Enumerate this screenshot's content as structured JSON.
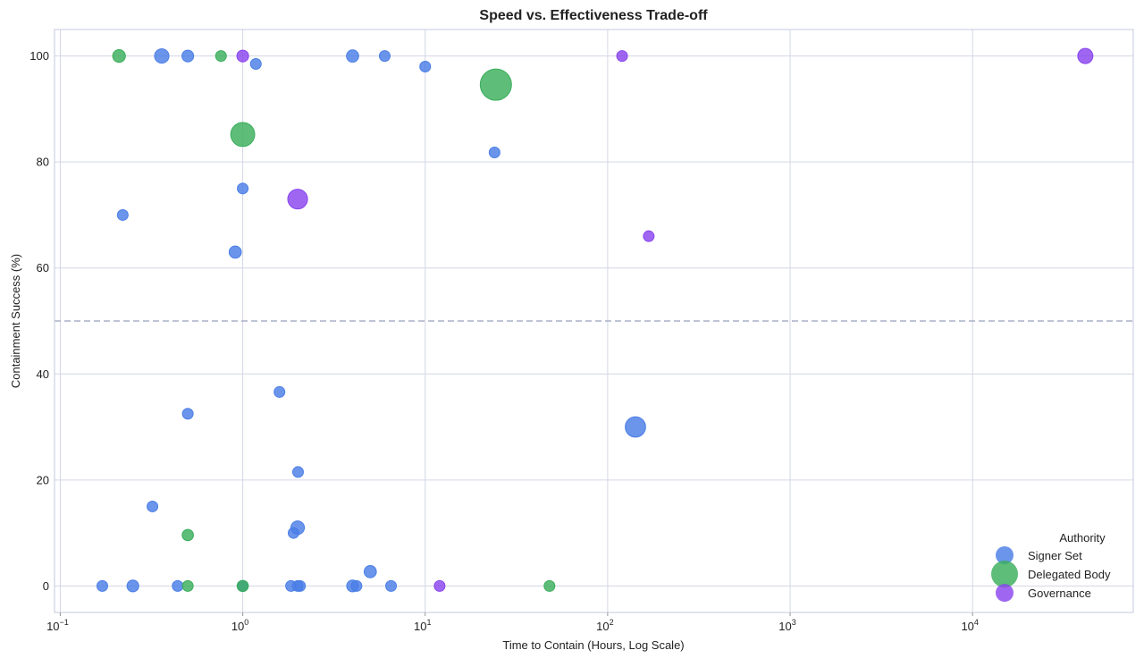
{
  "chart_data": {
    "type": "scatter",
    "title": "Speed vs. Effectiveness Trade-off",
    "xlabel": "Time to Contain (Hours, Log Scale)",
    "ylabel": "Containment Success (%)",
    "xscale": "log",
    "xlim": [
      0.093,
      76000
    ],
    "ylim": [
      -5,
      105
    ],
    "x_ticks": [
      {
        "base": "10",
        "exp": "−1",
        "value": 0.1
      },
      {
        "base": "10",
        "exp": "0",
        "value": 1
      },
      {
        "base": "10",
        "exp": "1",
        "value": 10
      },
      {
        "base": "10",
        "exp": "2",
        "value": 100
      },
      {
        "base": "10",
        "exp": "3",
        "value": 1000
      },
      {
        "base": "10",
        "exp": "4",
        "value": 10000
      }
    ],
    "y_ticks": [
      "0",
      "20",
      "40",
      "60",
      "80",
      "100"
    ],
    "grid": true,
    "reference_line": {
      "y": 50,
      "style": "dashed"
    },
    "legend": {
      "title": "Authority",
      "placement": "bottom-right"
    },
    "colors": {
      "Signer Set": "#4a7ee6",
      "Delegated Body": "#3aae5c",
      "Governance": "#8a45ee"
    },
    "series": [
      {
        "name": "Signer Set",
        "points": [
          {
            "x": 0.36,
            "y": 100,
            "size": 1.8
          },
          {
            "x": 0.5,
            "y": 100,
            "size": 1.2
          },
          {
            "x": 1.18,
            "y": 98.5,
            "size": 1
          },
          {
            "x": 4.0,
            "y": 100,
            "size": 1.3
          },
          {
            "x": 6.0,
            "y": 100,
            "size": 1
          },
          {
            "x": 10,
            "y": 98,
            "size": 1
          },
          {
            "x": 24,
            "y": 81.8,
            "size": 1
          },
          {
            "x": 1.0,
            "y": 75,
            "size": 1
          },
          {
            "x": 0.22,
            "y": 70,
            "size": 1
          },
          {
            "x": 0.91,
            "y": 63,
            "size": 1.3
          },
          {
            "x": 1.59,
            "y": 36.6,
            "size": 1
          },
          {
            "x": 0.5,
            "y": 32.5,
            "size": 1
          },
          {
            "x": 142,
            "y": 30,
            "size": 3.6
          },
          {
            "x": 2.01,
            "y": 21.5,
            "size": 1
          },
          {
            "x": 0.32,
            "y": 15,
            "size": 1
          },
          {
            "x": 2.0,
            "y": 11,
            "size": 1.6
          },
          {
            "x": 1.9,
            "y": 10,
            "size": 1
          },
          {
            "x": 5.0,
            "y": 2.7,
            "size": 1.3
          },
          {
            "x": 0.17,
            "y": 0,
            "size": 1
          },
          {
            "x": 0.25,
            "y": 0,
            "size": 1.2
          },
          {
            "x": 0.44,
            "y": 0,
            "size": 1
          },
          {
            "x": 1.0,
            "y": 0,
            "size": 1
          },
          {
            "x": 1.84,
            "y": 0,
            "size": 1
          },
          {
            "x": 2.0,
            "y": 0,
            "size": 1
          },
          {
            "x": 2.06,
            "y": 0,
            "size": 1
          },
          {
            "x": 4.0,
            "y": 0,
            "size": 1.2
          },
          {
            "x": 4.2,
            "y": 0,
            "size": 1
          },
          {
            "x": 6.5,
            "y": 0,
            "size": 1
          }
        ]
      },
      {
        "name": "Delegated Body",
        "points": [
          {
            "x": 0.21,
            "y": 100,
            "size": 1.4
          },
          {
            "x": 0.76,
            "y": 100,
            "size": 1
          },
          {
            "x": 24.4,
            "y": 94.6,
            "size": 8.5
          },
          {
            "x": 1.0,
            "y": 85.2,
            "size": 5
          },
          {
            "x": 0.5,
            "y": 9.6,
            "size": 1.1
          },
          {
            "x": 0.5,
            "y": 0,
            "size": 1
          },
          {
            "x": 1.0,
            "y": 0,
            "size": 1.1
          },
          {
            "x": 48,
            "y": 0,
            "size": 1
          }
        ]
      },
      {
        "name": "Governance",
        "points": [
          {
            "x": 1.0,
            "y": 100,
            "size": 1.2
          },
          {
            "x": 120,
            "y": 100,
            "size": 1
          },
          {
            "x": 41500,
            "y": 100,
            "size": 2
          },
          {
            "x": 2.0,
            "y": 73,
            "size": 3.4
          },
          {
            "x": 168,
            "y": 66,
            "size": 1
          },
          {
            "x": 12,
            "y": 0,
            "size": 1
          }
        ]
      }
    ]
  }
}
